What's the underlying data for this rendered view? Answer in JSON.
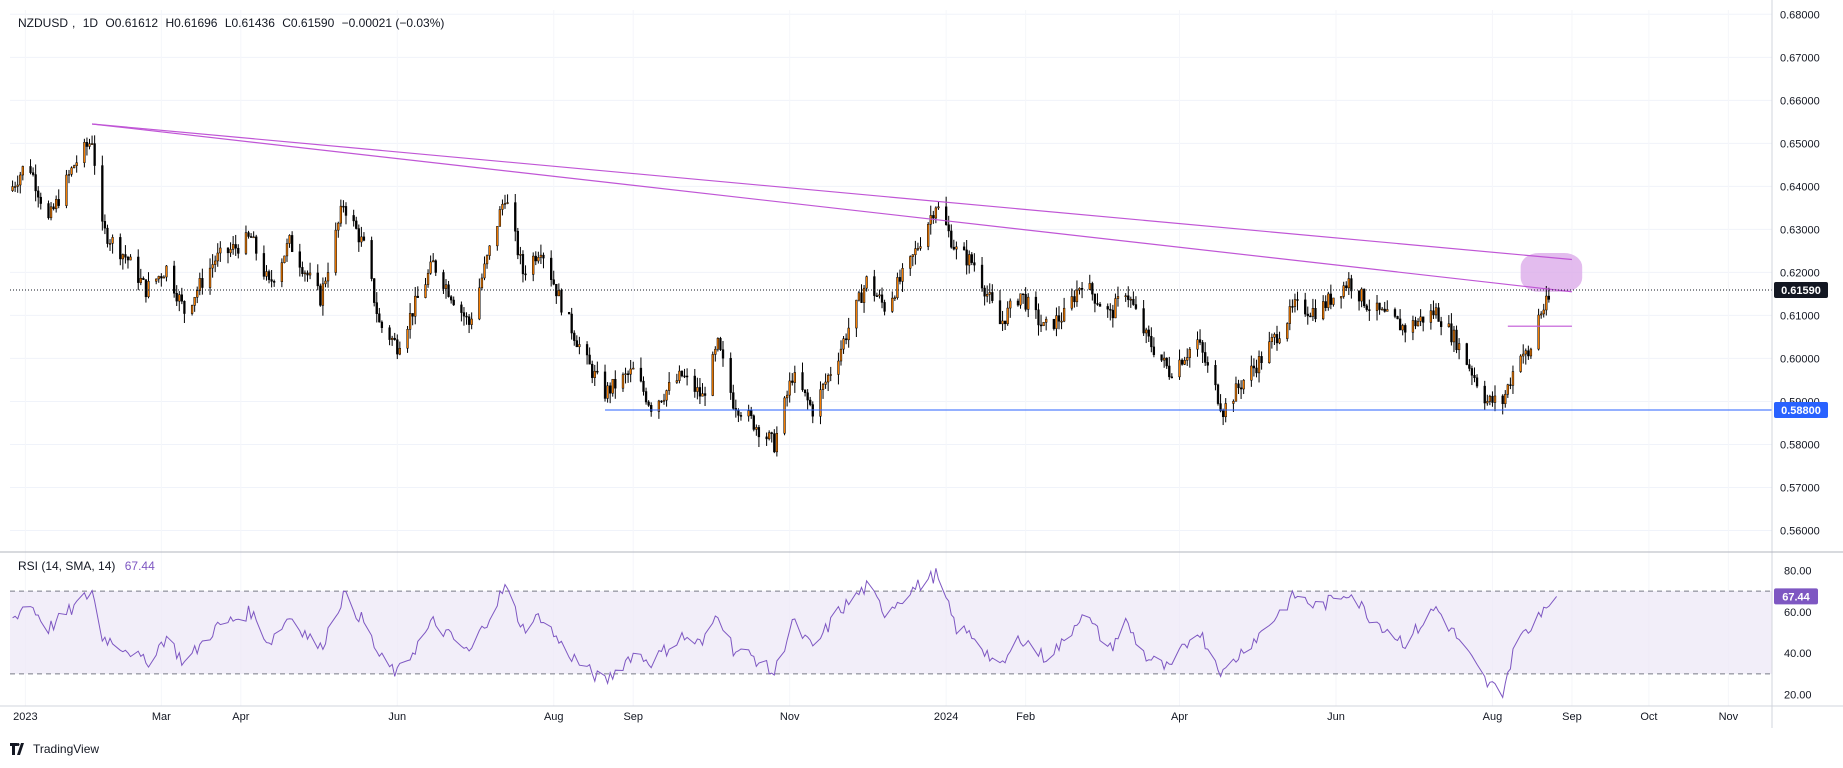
{
  "legend": {
    "symbol": "NZDUSD",
    "interval": "1D",
    "open": "O0.61612",
    "high": "H0.61696",
    "low": "L0.61436",
    "close": "C0.61590",
    "change": "−0.00021 (−0.03%)"
  },
  "rsi_legend": {
    "label": "RSI (14, SMA, 14)",
    "value": "67.44"
  },
  "brand": "TradingView",
  "colors": {
    "up": "#f57c00",
    "down": "#000000",
    "trend": "#c056d6",
    "support": "#2962ff",
    "rsi": "#7e57c2",
    "zone": "#d9a6e8"
  },
  "price_axis": {
    "ticks": [
      "0.68000",
      "0.67000",
      "0.66000",
      "0.65000",
      "0.64000",
      "0.63000",
      "0.62000",
      "0.61000",
      "0.60000",
      "0.59000",
      "0.58000",
      "0.57000",
      "0.56000"
    ]
  },
  "current_price_label": "0.61590",
  "support_label": "0.58800",
  "rsi_axis": {
    "ticks": [
      "80.00",
      "60.00",
      "40.00",
      "20.00"
    ],
    "value_label": "67.44"
  },
  "time_axis": {
    "labels": [
      "2023",
      "Mar",
      "Apr",
      "Jun",
      "Aug",
      "Sep",
      "Nov",
      "2024",
      "Feb",
      "Apr",
      "Jun",
      "Aug",
      "Sep",
      "Oct",
      "Nov"
    ]
  },
  "chart_data": {
    "type": "candlestick",
    "symbol": "NZDUSD",
    "interval": "1D",
    "price_range": [
      0.555,
      0.681
    ],
    "current_price": 0.6159,
    "support_level": 0.588,
    "resistance_level": 0.6075,
    "trendlines": [
      {
        "name": "upper",
        "from": [
          "2023-02-02",
          0.6545
        ],
        "to": [
          "2024-09-01",
          0.623
        ]
      },
      {
        "name": "lower",
        "from": [
          "2023-02-02",
          0.6545
        ],
        "to": [
          "2024-09-01",
          0.6155
        ]
      }
    ],
    "pivots": [
      {
        "date": "2023-01-01",
        "price": 0.639
      },
      {
        "date": "2023-01-08",
        "price": 0.646
      },
      {
        "date": "2023-01-16",
        "price": 0.632
      },
      {
        "date": "2023-01-26",
        "price": 0.645
      },
      {
        "date": "2023-02-02",
        "price": 0.651
      },
      {
        "date": "2023-02-06",
        "price": 0.63
      },
      {
        "date": "2023-02-16",
        "price": 0.623
      },
      {
        "date": "2023-02-23",
        "price": 0.616
      },
      {
        "date": "2023-03-03",
        "price": 0.621
      },
      {
        "date": "2023-03-10",
        "price": 0.611
      },
      {
        "date": "2023-03-22",
        "price": 0.623
      },
      {
        "date": "2023-04-05",
        "price": 0.628
      },
      {
        "date": "2023-04-12",
        "price": 0.617
      },
      {
        "date": "2023-04-20",
        "price": 0.627
      },
      {
        "date": "2023-05-02",
        "price": 0.614
      },
      {
        "date": "2023-05-11",
        "price": 0.636
      },
      {
        "date": "2023-05-19",
        "price": 0.626
      },
      {
        "date": "2023-05-25",
        "price": 0.608
      },
      {
        "date": "2023-06-01",
        "price": 0.603
      },
      {
        "date": "2023-06-15",
        "price": 0.622
      },
      {
        "date": "2023-06-29",
        "price": 0.608
      },
      {
        "date": "2023-07-13",
        "price": 0.638
      },
      {
        "date": "2023-07-20",
        "price": 0.62
      },
      {
        "date": "2023-07-27",
        "price": 0.626
      },
      {
        "date": "2023-08-05",
        "price": 0.611
      },
      {
        "date": "2023-08-14",
        "price": 0.599
      },
      {
        "date": "2023-08-21",
        "price": 0.592
      },
      {
        "date": "2023-09-01",
        "price": 0.597
      },
      {
        "date": "2023-09-08",
        "price": 0.589
      },
      {
        "date": "2023-09-20",
        "price": 0.596
      },
      {
        "date": "2023-09-28",
        "price": 0.591
      },
      {
        "date": "2023-10-04",
        "price": 0.603
      },
      {
        "date": "2023-10-10",
        "price": 0.59
      },
      {
        "date": "2023-10-18",
        "price": 0.585
      },
      {
        "date": "2023-10-26",
        "price": 0.58
      },
      {
        "date": "2023-11-02",
        "price": 0.596
      },
      {
        "date": "2023-11-10",
        "price": 0.588
      },
      {
        "date": "2023-11-20",
        "price": 0.601
      },
      {
        "date": "2023-12-01",
        "price": 0.618
      },
      {
        "date": "2023-12-08",
        "price": 0.612
      },
      {
        "date": "2023-12-18",
        "price": 0.622
      },
      {
        "date": "2023-12-28",
        "price": 0.636
      },
      {
        "date": "2024-01-05",
        "price": 0.625
      },
      {
        "date": "2024-01-12",
        "price": 0.622
      },
      {
        "date": "2024-01-22",
        "price": 0.608
      },
      {
        "date": "2024-01-30",
        "price": 0.615
      },
      {
        "date": "2024-02-08",
        "price": 0.607
      },
      {
        "date": "2024-02-16",
        "price": 0.61
      },
      {
        "date": "2024-02-23",
        "price": 0.618
      },
      {
        "date": "2024-03-05",
        "price": 0.61
      },
      {
        "date": "2024-03-11",
        "price": 0.616
      },
      {
        "date": "2024-03-19",
        "price": 0.605
      },
      {
        "date": "2024-03-28",
        "price": 0.597
      },
      {
        "date": "2024-04-08",
        "price": 0.604
      },
      {
        "date": "2024-04-18",
        "price": 0.588
      },
      {
        "date": "2024-04-26",
        "price": 0.595
      },
      {
        "date": "2024-05-03",
        "price": 0.6
      },
      {
        "date": "2024-05-16",
        "price": 0.612
      },
      {
        "date": "2024-05-25",
        "price": 0.611
      },
      {
        "date": "2024-06-06",
        "price": 0.618
      },
      {
        "date": "2024-06-14",
        "price": 0.612
      },
      {
        "date": "2024-06-28",
        "price": 0.607
      },
      {
        "date": "2024-07-10",
        "price": 0.611
      },
      {
        "date": "2024-07-18",
        "price": 0.604
      },
      {
        "date": "2024-07-30",
        "price": 0.59
      },
      {
        "date": "2024-08-05",
        "price": 0.59
      },
      {
        "date": "2024-08-12",
        "price": 0.602
      },
      {
        "date": "2024-08-15",
        "price": 0.6
      },
      {
        "date": "2024-08-19",
        "price": 0.61
      },
      {
        "date": "2024-08-26",
        "price": 0.6159
      }
    ],
    "rsi": {
      "label": "RSI (14, SMA, 14)",
      "value": 67.44,
      "range": [
        15,
        85
      ],
      "bands": [
        70,
        30
      ],
      "series": [
        {
          "date": "2023-01-01",
          "value": 55
        },
        {
          "date": "2023-01-08",
          "value": 65
        },
        {
          "date": "2023-01-16",
          "value": 52
        },
        {
          "date": "2023-01-26",
          "value": 62
        },
        {
          "date": "2023-02-02",
          "value": 70
        },
        {
          "date": "2023-02-06",
          "value": 48
        },
        {
          "date": "2023-02-16",
          "value": 42
        },
        {
          "date": "2023-02-23",
          "value": 35
        },
        {
          "date": "2023-03-03",
          "value": 48
        },
        {
          "date": "2023-03-10",
          "value": 35
        },
        {
          "date": "2023-03-22",
          "value": 52
        },
        {
          "date": "2023-04-05",
          "value": 60
        },
        {
          "date": "2023-04-12",
          "value": 45
        },
        {
          "date": "2023-04-20",
          "value": 58
        },
        {
          "date": "2023-05-02",
          "value": 42
        },
        {
          "date": "2023-05-11",
          "value": 68
        },
        {
          "date": "2023-05-19",
          "value": 55
        },
        {
          "date": "2023-05-25",
          "value": 38
        },
        {
          "date": "2023-06-01",
          "value": 30
        },
        {
          "date": "2023-06-15",
          "value": 55
        },
        {
          "date": "2023-06-29",
          "value": 40
        },
        {
          "date": "2023-07-13",
          "value": 72
        },
        {
          "date": "2023-07-20",
          "value": 52
        },
        {
          "date": "2023-07-27",
          "value": 58
        },
        {
          "date": "2023-08-05",
          "value": 42
        },
        {
          "date": "2023-08-14",
          "value": 32
        },
        {
          "date": "2023-08-21",
          "value": 26
        },
        {
          "date": "2023-09-01",
          "value": 40
        },
        {
          "date": "2023-09-08",
          "value": 36
        },
        {
          "date": "2023-09-20",
          "value": 48
        },
        {
          "date": "2023-09-28",
          "value": 44
        },
        {
          "date": "2023-10-04",
          "value": 60
        },
        {
          "date": "2023-10-10",
          "value": 42
        },
        {
          "date": "2023-10-18",
          "value": 38
        },
        {
          "date": "2023-10-26",
          "value": 30
        },
        {
          "date": "2023-11-02",
          "value": 55
        },
        {
          "date": "2023-11-10",
          "value": 42
        },
        {
          "date": "2023-11-20",
          "value": 60
        },
        {
          "date": "2023-12-01",
          "value": 72
        },
        {
          "date": "2023-12-08",
          "value": 60
        },
        {
          "date": "2023-12-18",
          "value": 70
        },
        {
          "date": "2023-12-28",
          "value": 78
        },
        {
          "date": "2024-01-05",
          "value": 52
        },
        {
          "date": "2024-01-12",
          "value": 48
        },
        {
          "date": "2024-01-22",
          "value": 32
        },
        {
          "date": "2024-01-30",
          "value": 48
        },
        {
          "date": "2024-02-08",
          "value": 38
        },
        {
          "date": "2024-02-16",
          "value": 45
        },
        {
          "date": "2024-02-23",
          "value": 60
        },
        {
          "date": "2024-03-05",
          "value": 42
        },
        {
          "date": "2024-03-11",
          "value": 55
        },
        {
          "date": "2024-03-19",
          "value": 38
        },
        {
          "date": "2024-03-28",
          "value": 32
        },
        {
          "date": "2024-04-08",
          "value": 52
        },
        {
          "date": "2024-04-18",
          "value": 30
        },
        {
          "date": "2024-04-26",
          "value": 42
        },
        {
          "date": "2024-05-03",
          "value": 50
        },
        {
          "date": "2024-05-16",
          "value": 68
        },
        {
          "date": "2024-05-25",
          "value": 62
        },
        {
          "date": "2024-06-06",
          "value": 70
        },
        {
          "date": "2024-06-14",
          "value": 58
        },
        {
          "date": "2024-06-28",
          "value": 45
        },
        {
          "date": "2024-07-10",
          "value": 62
        },
        {
          "date": "2024-07-18",
          "value": 48
        },
        {
          "date": "2024-07-30",
          "value": 25
        },
        {
          "date": "2024-08-05",
          "value": 22
        },
        {
          "date": "2024-08-12",
          "value": 52
        },
        {
          "date": "2024-08-15",
          "value": 48
        },
        {
          "date": "2024-08-19",
          "value": 60
        },
        {
          "date": "2024-08-26",
          "value": 67.44
        }
      ]
    }
  }
}
